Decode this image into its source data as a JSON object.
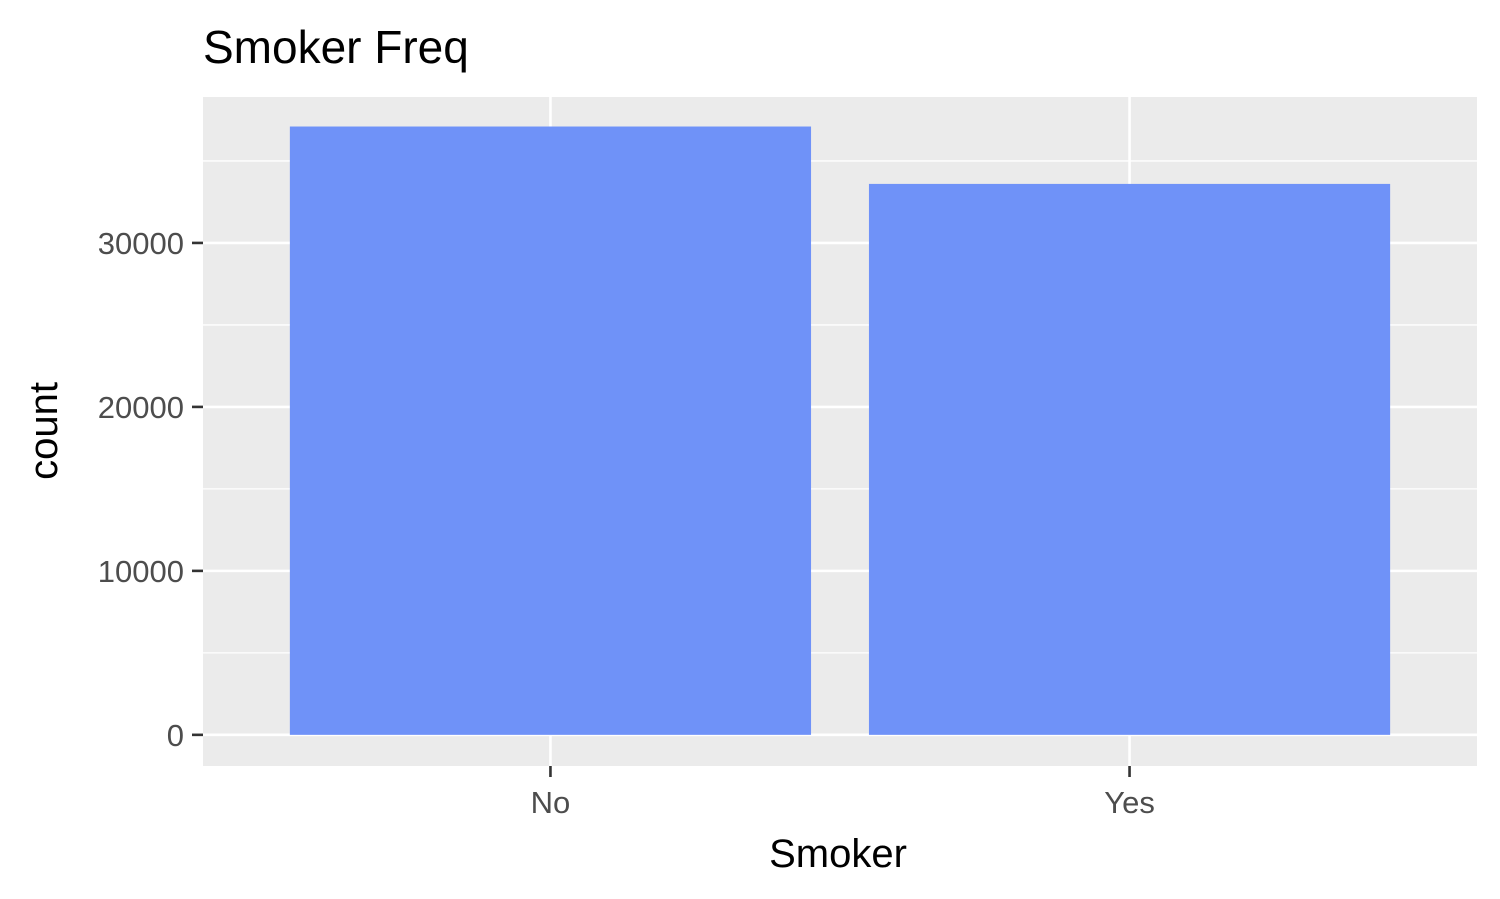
{
  "chart_data": {
    "type": "bar",
    "title": "Smoker Freq",
    "xlabel": "Smoker",
    "ylabel": "count",
    "categories": [
      "No",
      "Yes"
    ],
    "values": [
      37100,
      33600
    ],
    "ylim": [
      -1900,
      38900
    ],
    "yticks": [
      0,
      10000,
      20000,
      30000
    ],
    "ytick_labels": [
      "0",
      "10000",
      "20000",
      "30000"
    ],
    "bar_color": "#6f92f8",
    "panel_background": "#ebebeb",
    "grid_color": "#ffffff",
    "grid": true,
    "legend": "none"
  }
}
